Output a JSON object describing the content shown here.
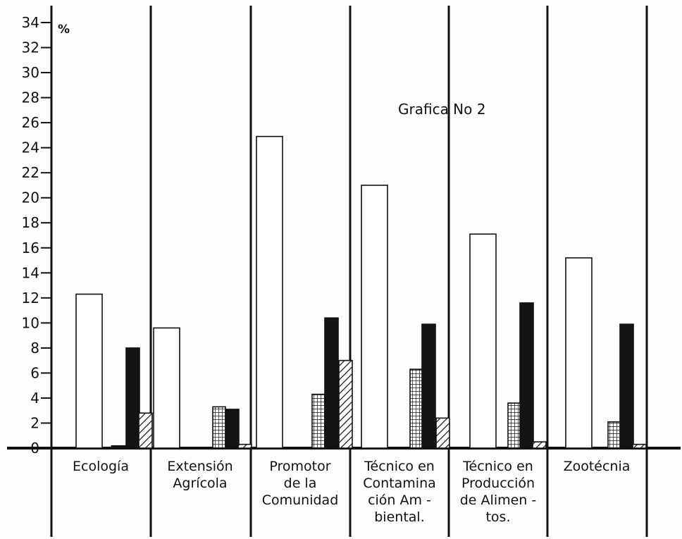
{
  "chart_data": {
    "type": "bar",
    "title": "Grafica No 2",
    "ylabel": "%",
    "ylim": [
      0,
      34
    ],
    "y_ticks": [
      0,
      2,
      4,
      6,
      8,
      10,
      12,
      14,
      16,
      18,
      20,
      22,
      24,
      26,
      28,
      30,
      32,
      34
    ],
    "categories": [
      [
        "Ecología"
      ],
      [
        "Extensión",
        "Agrícola"
      ],
      [
        "Promotor",
        "de la",
        "Comunidad"
      ],
      [
        "Técnico en",
        "Contamina",
        "ción Am -",
        "biental."
      ],
      [
        "Técnico en",
        "Producción",
        "de Alimen -",
        "tos."
      ],
      [
        "Zootécnia"
      ]
    ],
    "series": [
      {
        "fill": "white",
        "values": [
          12.3,
          9.6,
          24.9,
          21.0,
          17.1,
          15.2
        ]
      },
      {
        "fill": "grid",
        "values": [
          0,
          3.3,
          4.3,
          6.3,
          3.6,
          2.1
        ]
      },
      {
        "fill": "dark",
        "values": [
          8.0,
          3.1,
          10.4,
          9.9,
          11.6,
          9.9
        ]
      },
      {
        "fill": "hatch",
        "values": [
          2.8,
          0.3,
          7.0,
          2.4,
          0.5,
          0.3
        ]
      }
    ],
    "small_bars": [
      0.2,
      0,
      0,
      0,
      0,
      0
    ],
    "grid": false,
    "legend": "none",
    "colors": {
      "ink": "#111111",
      "background": "#fdfdfd"
    }
  }
}
